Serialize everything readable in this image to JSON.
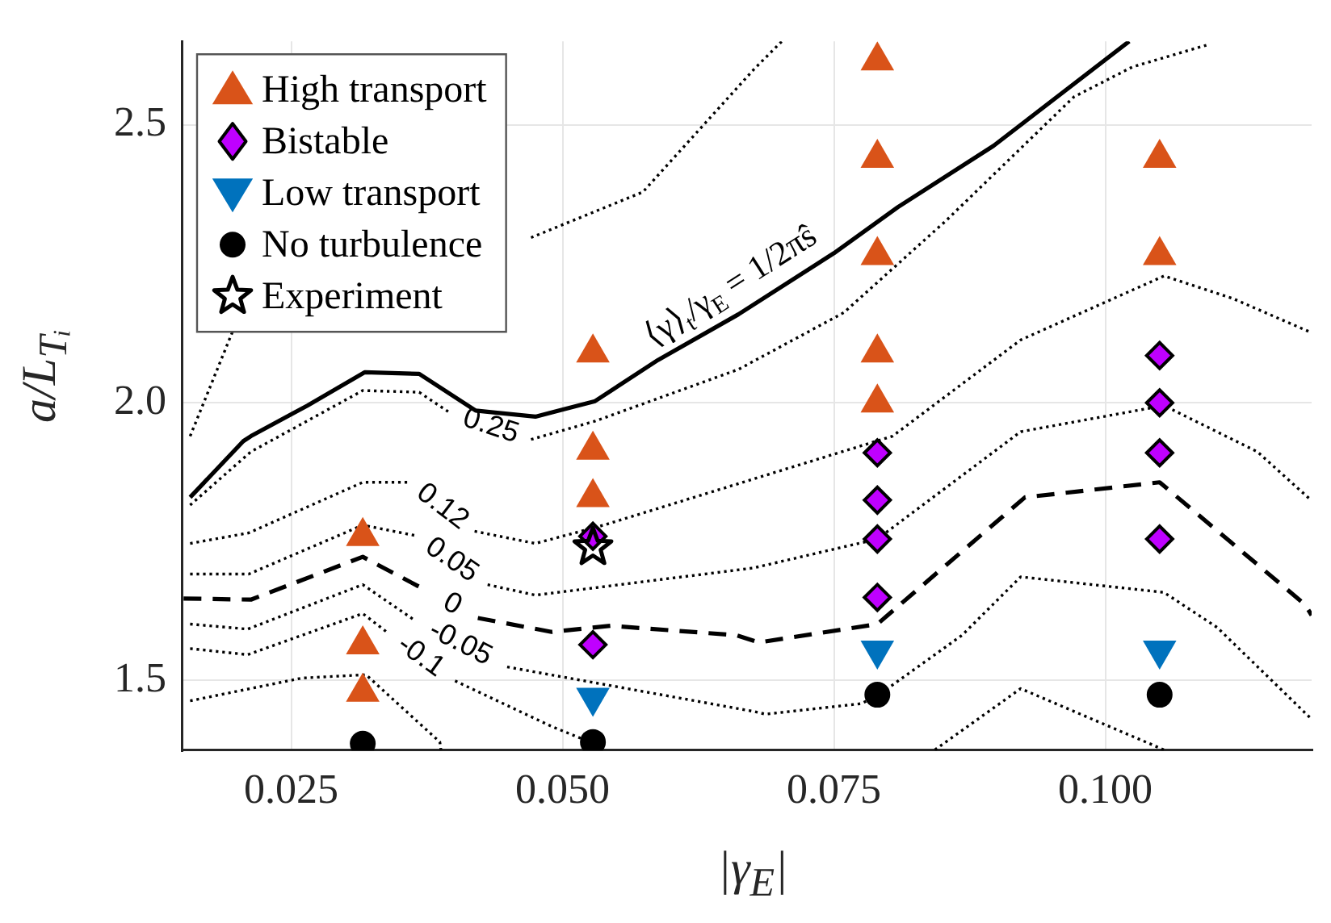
{
  "chart_data": {
    "type": "scatter",
    "xlabel": "|γ$_{E}$|",
    "ylabel": "a/L$_{Tᵢ}$",
    "xlim": [
      0.015,
      0.119
    ],
    "ylim": [
      1.375,
      2.65
    ],
    "xticks": [
      0.025,
      {
        "value": 0.05,
        "label": "0.050"
      },
      0.075,
      {
        "value": 0.1,
        "label": "0.100"
      }
    ],
    "yticks": [
      1.5,
      {
        "value": 2,
        "label": "2.0"
      },
      2.5
    ],
    "grid": true,
    "legend": "top left",
    "series": [
      {
        "type": "line",
        "color": "#000000",
        "line_style": "dotted",
        "marker": "none",
        "x": [
          0.0157,
          0.021,
          0.0279,
          0.0471,
          0.0574,
          0.0676,
          0.0702
        ],
        "values": [
          1.94,
          2.195,
          null,
          2.297,
          2.379,
          2.599,
          2.65
        ]
      },
      {
        "name": "0.25",
        "type": "line",
        "color": "#000000",
        "line_style": "dotted",
        "marker": "none",
        "x": [
          0.0157,
          0.0213,
          0.0316,
          0.0368,
          0.0397,
          0.0434,
          0.0471,
          0.053,
          0.0662,
          0.0759,
          0.0853,
          0.0971,
          0.1025,
          0.1093
        ],
        "values": [
          1.816,
          1.912,
          2.022,
          2.019,
          1.981,
          null,
          1.934,
          1.967,
          2.06,
          2.162,
          2.327,
          2.55,
          2.604,
          2.643
        ]
      },
      {
        "name": "0.12",
        "type": "line",
        "color": "#000000",
        "line_style": "dotted",
        "marker": "none",
        "x": [
          0.0157,
          0.0211,
          0.0316,
          0.036,
          0.039,
          0.0419,
          0.0475,
          0.0538,
          0.0676,
          0.0804,
          0.0922,
          0.1054,
          0.1118,
          0.119
        ],
        "values": [
          1.747,
          1.766,
          1.857,
          1.857,
          null,
          1.769,
          1.747,
          1.78,
          1.863,
          1.94,
          2.113,
          2.228,
          2.187,
          2.126
        ]
      },
      {
        "name": "0.05",
        "type": "line",
        "color": "#000000",
        "line_style": "dotted",
        "marker": "none",
        "x": [
          0.0157,
          0.0211,
          0.0316,
          0.0365,
          0.04,
          0.0431,
          0.0475,
          0.0676,
          0.079,
          0.0922,
          0.1054,
          0.114,
          0.119
        ],
        "values": [
          1.692,
          1.692,
          1.78,
          1.761,
          null,
          1.673,
          1.654,
          1.703,
          1.755,
          1.948,
          1.995,
          1.912,
          1.824
        ]
      },
      {
        "name": "0",
        "type": "line",
        "color": "#000000",
        "line_style": "dashed",
        "marker": "none",
        "x": [
          0.0151,
          0.0213,
          0.0316,
          0.0375,
          0.04,
          0.0422,
          0.049,
          0.0544,
          0.066,
          0.0681,
          0.079,
          0.0926,
          0.105,
          0.1184,
          0.119
        ],
        "values": [
          1.648,
          1.646,
          1.723,
          1.662,
          null,
          1.613,
          1.588,
          1.599,
          1.582,
          1.569,
          1.602,
          1.83,
          1.857,
          1.637,
          1.618
        ]
      },
      {
        "name": "-0.05",
        "type": "line",
        "color": "#000000",
        "line_style": "dotted",
        "marker": "none",
        "x": [
          0.0157,
          0.021,
          0.0316,
          0.0363,
          0.041,
          0.0449,
          0.0676,
          0.0687,
          0.0775,
          0.079,
          0.0868,
          0.0922,
          0.1054,
          0.1103,
          0.119
        ],
        "values": [
          1.602,
          1.593,
          1.673,
          1.61,
          null,
          1.525,
          1.445,
          1.44,
          1.459,
          1.473,
          1.582,
          1.687,
          1.659,
          1.596,
          1.431
        ]
      },
      {
        "name": "-0.1",
        "type": "line",
        "color": "#000000",
        "line_style": "dotted",
        "marker": "none",
        "x": [
          0.0157,
          0.021,
          0.0316,
          0.0338,
          0.037,
          0.0401,
          0.049,
          0.0529,
          0.0532
        ],
        "values": [
          1.558,
          1.547,
          1.621,
          1.588,
          null,
          1.5,
          1.418,
          1.387,
          1.376
        ]
      },
      {
        "type": "line",
        "color": "#000000",
        "line_style": "dotted",
        "marker": "none",
        "x": [
          0.0157,
          0.026,
          0.0319,
          0.0387,
          0.0388
        ],
        "values": [
          1.464,
          1.505,
          1.511,
          1.39,
          1.376
        ]
      },
      {
        "type": "line",
        "color": "#000000",
        "line_style": "dotted",
        "marker": "none",
        "x": [
          0.0843,
          0.0922,
          0.1054
        ],
        "values": [
          1.376,
          1.486,
          1.376
        ]
      },
      {
        "type": "line",
        "color": "#000000",
        "line_style": "solid",
        "marker": "none",
        "x": [
          0.0157,
          0.0206,
          0.0213,
          0.0265,
          0.0318,
          0.0368,
          0.042,
          0.0475,
          0.053,
          0.0588,
          0.0662,
          0.075,
          0.0809,
          0.0897,
          0.1022
        ],
        "values": [
          1.83,
          1.931,
          1.94,
          1.995,
          2.055,
          2.052,
          1.986,
          1.975,
          2.003,
          2.077,
          2.159,
          2.269,
          2.352,
          2.462,
          2.65
        ]
      },
      {
        "name": "High transport",
        "type": "scatter",
        "marker": "triangle",
        "color": "#d95319",
        "x": [
          0.0316,
          0.0316,
          0.0316,
          0.0528,
          0.0528,
          0.0528,
          0.079,
          0.079,
          0.079,
          0.079,
          0.079,
          0.105,
          0.105
        ],
        "values": [
          1.76,
          1.565,
          1.48,
          2.09,
          1.915,
          1.83,
          2.615,
          2.44,
          2.265,
          2.09,
          2.0,
          2.44,
          2.265
        ]
      },
      {
        "name": "Bistable",
        "type": "scatter",
        "marker": "diamond",
        "color": "#bf00ff",
        "x": [
          0.0528,
          0.0528,
          0.079,
          0.079,
          0.079,
          0.079,
          0.105,
          0.105,
          0.105,
          0.105
        ],
        "values": [
          1.76,
          1.565,
          1.91,
          1.825,
          1.755,
          1.65,
          2.085,
          2.0,
          1.91,
          1.755
        ]
      },
      {
        "name": "Low transport",
        "type": "scatter",
        "marker": "triangle-down",
        "color": "#0072bd",
        "x": [
          0.0528,
          0.079,
          0.105
        ],
        "values": [
          1.47,
          1.555,
          1.555
        ]
      },
      {
        "name": "No turbulence",
        "type": "scatter",
        "marker": "circle",
        "color": "#000000",
        "x": [
          0.0316,
          0.0528,
          0.079,
          0.105
        ],
        "values": [
          1.387,
          1.39,
          1.475,
          1.475
        ]
      },
      {
        "name": "Experiment",
        "type": "scatter",
        "marker": "star",
        "color": "#000000",
        "x": [
          0.0528
        ],
        "values": [
          1.74
        ]
      }
    ],
    "annotations": [
      {
        "text": "⟨γ⟩$_{t}$/γ$_{E}$ = 1/2πŝ",
        "x": 0.0669,
        "y": 2.167
      }
    ]
  }
}
